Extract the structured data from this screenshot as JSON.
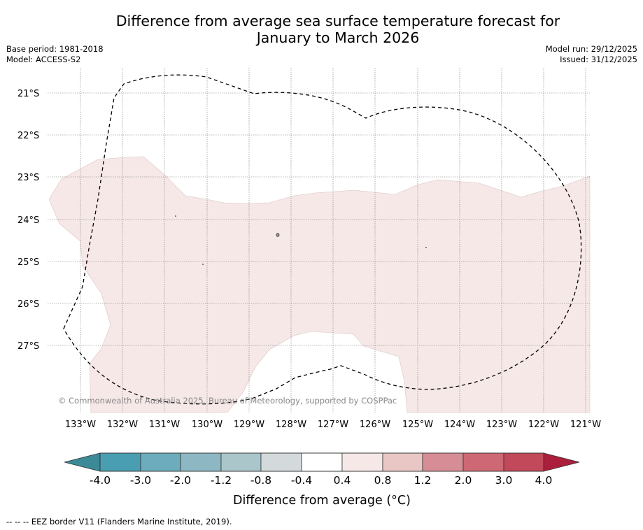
{
  "title": {
    "line1": "Difference from average sea surface temperature forecast for",
    "line2": "January to March 2026"
  },
  "meta": {
    "base_period": "Base period: 1981-2018",
    "model": "Model: ACCESS-S2",
    "model_run": "Model run: 29/12/2025",
    "issued": "Issued: 31/12/2025"
  },
  "map": {
    "lat_labels": [
      "21°S",
      "22°S",
      "23°S",
      "24°S",
      "25°S",
      "26°S",
      "27°S"
    ],
    "lon_labels": [
      "133°W",
      "132°W",
      "131°W",
      "130°W",
      "129°W",
      "128°W",
      "127°W",
      "126°W",
      "125°W",
      "124°W",
      "123°W",
      "122°W",
      "121°W"
    ],
    "copyright": "© Commonwealth of Australia 2025, Bureau of Meteorology, supported by COSPPac",
    "anomaly_fill": "#f5e8e7",
    "anomaly_range": "0.4 to 0.8"
  },
  "colorbar": {
    "title": "Difference from average (°C)",
    "tick_labels": [
      "-4.0",
      "-3.0",
      "-2.0",
      "-1.2",
      "-0.8",
      "-0.4",
      "0.4",
      "0.8",
      "1.2",
      "2.0",
      "3.0",
      "4.0"
    ],
    "colors": [
      "#499fb1",
      "#6cacbc",
      "#8db7c2",
      "#aac6cb",
      "#d4d9dc",
      "#ffffff",
      "#f5e8e7",
      "#e8c7c4",
      "#d78d95",
      "#cd6874",
      "#c1495a"
    ],
    "under_color": "#3c8a98",
    "over_color": "#ab1f3c"
  },
  "footer": {
    "eez_note": "--  --  -- EEZ border V11 (Flanders Marine Institute, 2019)."
  }
}
